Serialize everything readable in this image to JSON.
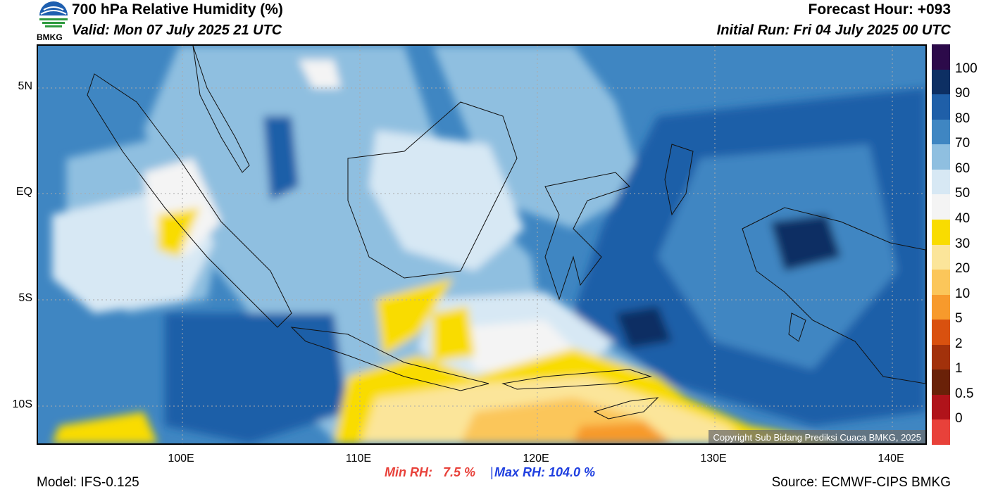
{
  "header": {
    "title": "700 hPa Relative Humidity (%)",
    "valid": "Valid: Mon 07 July 2025 21 UTC",
    "forecast_hour": "Forecast Hour: +093",
    "initial_run": "Initial Run: Fri 04 July 2025 00 UTC",
    "logo_text": "BMKG"
  },
  "axes": {
    "y_ticks": [
      "5N",
      "EQ",
      "5S",
      "10S"
    ],
    "x_ticks": [
      "100E",
      "110E",
      "120E",
      "130E",
      "140E"
    ]
  },
  "colorbar": {
    "labels": [
      "100",
      "90",
      "80",
      "70",
      "60",
      "50",
      "40",
      "30",
      "20",
      "10",
      "5",
      "2",
      "1",
      "0.5",
      "0"
    ],
    "colors": [
      "#2c0a4a",
      "#0d2f63",
      "#1f5fa8",
      "#3f86c2",
      "#8fbfe0",
      "#d7e8f4",
      "#f4f4f4",
      "#f9dc00",
      "#fbe59a",
      "#fbc65a",
      "#f79a2c",
      "#d9510f",
      "#a2310b",
      "#6a2108",
      "#b0131a",
      "#e8413a"
    ]
  },
  "stats": {
    "min_rh": "Min RH:   7.5 %",
    "separator": "|",
    "max_rh": "Max RH: 104.0 %"
  },
  "footer": {
    "model": "Model: IFS-0.125",
    "source": "Source: ECMWF-CIPS BMKG",
    "copyright": "Copyright Sub Bidang Prediksi Cuaca BMKG, 2025"
  }
}
